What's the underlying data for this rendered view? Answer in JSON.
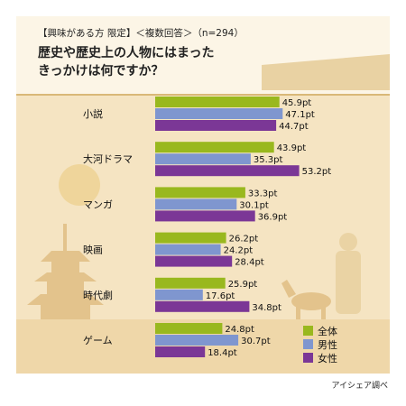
{
  "chart_data": {
    "type": "bar",
    "orientation": "horizontal",
    "header_note": "【興味がある方 限定】＜複数回答＞（n=294）",
    "title_lines": [
      "歴史や歴史上の人物にはまった",
      "きっかけは何ですか？"
    ],
    "categories": [
      "小説",
      "大河ドラマ",
      "マンガ",
      "映画",
      "時代劇",
      "ゲーム"
    ],
    "series": [
      {
        "name": "全体",
        "color": "#99b81e",
        "values": [
          45.9,
          43.9,
          33.3,
          26.2,
          25.9,
          24.8
        ]
      },
      {
        "name": "男性",
        "color": "#7f96cf",
        "values": [
          47.1,
          35.3,
          30.1,
          24.2,
          17.6,
          30.7
        ]
      },
      {
        "name": "女性",
        "color": "#7b3796",
        "values": [
          44.7,
          53.2,
          36.9,
          28.4,
          34.8,
          18.4
        ]
      }
    ],
    "value_suffix": "pt",
    "xlim": [
      0,
      60
    ],
    "grid": false,
    "legend_position": "bottom-right",
    "source": "アイシェア調べ"
  }
}
